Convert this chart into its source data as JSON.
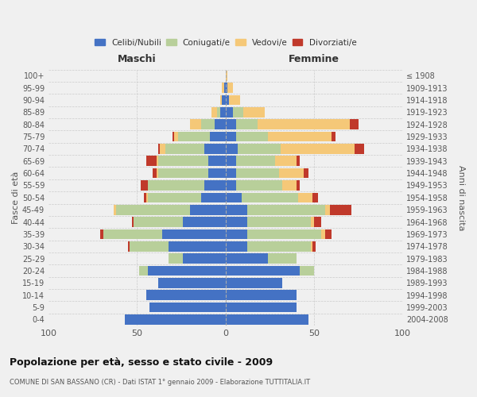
{
  "age_groups": [
    "0-4",
    "5-9",
    "10-14",
    "15-19",
    "20-24",
    "25-29",
    "30-34",
    "35-39",
    "40-44",
    "45-49",
    "50-54",
    "55-59",
    "60-64",
    "65-69",
    "70-74",
    "75-79",
    "80-84",
    "85-89",
    "90-94",
    "95-99",
    "100+"
  ],
  "birth_years": [
    "2004-2008",
    "1999-2003",
    "1994-1998",
    "1989-1993",
    "1984-1988",
    "1979-1983",
    "1974-1978",
    "1969-1973",
    "1964-1968",
    "1959-1963",
    "1954-1958",
    "1949-1953",
    "1944-1948",
    "1939-1943",
    "1934-1938",
    "1929-1933",
    "1924-1928",
    "1919-1923",
    "1914-1918",
    "1909-1913",
    "≤ 1908"
  ],
  "colors": {
    "celibe": "#4472C4",
    "coniugato": "#B8CF9A",
    "vedovo": "#F5C878",
    "divorziato": "#C0392B"
  },
  "maschi": {
    "celibe": [
      57,
      43,
      45,
      38,
      44,
      24,
      32,
      36,
      24,
      20,
      14,
      12,
      10,
      10,
      12,
      9,
      6,
      3,
      2,
      1,
      0
    ],
    "coniugato": [
      0,
      0,
      0,
      0,
      5,
      8,
      22,
      33,
      28,
      42,
      30,
      32,
      28,
      28,
      22,
      18,
      8,
      2,
      0,
      0,
      0
    ],
    "vedovo": [
      0,
      0,
      0,
      0,
      0,
      0,
      0,
      0,
      0,
      1,
      1,
      0,
      1,
      1,
      3,
      2,
      6,
      3,
      1,
      1,
      0
    ],
    "divorziato": [
      0,
      0,
      0,
      0,
      0,
      0,
      1,
      2,
      1,
      0,
      1,
      4,
      2,
      6,
      1,
      1,
      0,
      0,
      0,
      0,
      0
    ]
  },
  "femmine": {
    "nubile": [
      47,
      40,
      40,
      32,
      42,
      24,
      12,
      12,
      12,
      12,
      9,
      6,
      6,
      6,
      7,
      6,
      6,
      4,
      2,
      1,
      0
    ],
    "coniugata": [
      0,
      0,
      0,
      0,
      8,
      16,
      36,
      42,
      36,
      44,
      32,
      26,
      24,
      22,
      24,
      18,
      12,
      6,
      0,
      0,
      0
    ],
    "vedova": [
      0,
      0,
      0,
      0,
      0,
      0,
      1,
      2,
      2,
      3,
      8,
      8,
      14,
      12,
      42,
      36,
      52,
      12,
      6,
      3,
      1
    ],
    "divorziata": [
      0,
      0,
      0,
      0,
      0,
      0,
      2,
      4,
      4,
      12,
      3,
      2,
      3,
      2,
      5,
      2,
      5,
      0,
      0,
      0,
      0
    ]
  },
  "xlim": 100,
  "title": "Popolazione per età, sesso e stato civile - 2009",
  "subtitle": "COMUNE DI SAN BASSANO (CR) - Dati ISTAT 1° gennaio 2009 - Elaborazione TUTTITALIA.IT",
  "header_left": "Maschi",
  "header_right": "Femmine",
  "ylabel_left": "Fasce di età",
  "ylabel_right": "Anni di nascita",
  "bg_color": "#f0f0f0",
  "legend_labels": [
    "Celibi/Nubili",
    "Coniugati/e",
    "Vedovi/e",
    "Divorziati/e"
  ]
}
